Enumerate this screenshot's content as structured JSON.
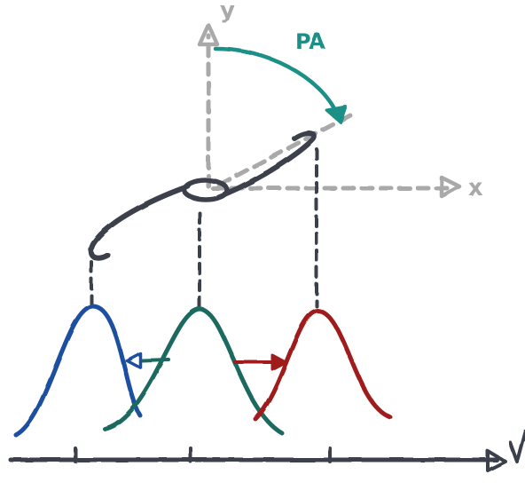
{
  "labels": {
    "y_axis": "y",
    "x_axis": "x",
    "velocity_axis": "v",
    "position_angle": "PA"
  },
  "colors": {
    "axis_gray": "#a9a9a9",
    "galaxy_dark": "#3a3f4b",
    "pa_teal": "#1f8f86",
    "approaching_blue": "#1f4fa0",
    "systemic_green": "#1f6b5e",
    "receding_red": "#a01e1e",
    "baseline": "#3a3f4b"
  },
  "profiles": [
    {
      "name": "blue-profile",
      "color": "approaching_blue"
    },
    {
      "name": "green-profile",
      "color": "systemic_green"
    },
    {
      "name": "red-profile",
      "color": "receding_red"
    }
  ],
  "velocity_ticks": 3
}
